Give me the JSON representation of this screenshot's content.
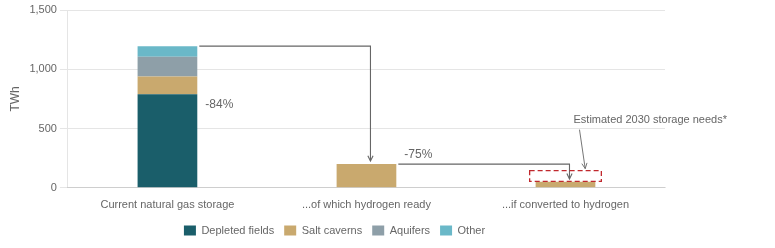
{
  "chart_data": {
    "type": "bar",
    "stacked": true,
    "categories": [
      "Current natural gas storage",
      "...of which hydrogen ready",
      "...if converted to hydrogen"
    ],
    "series": [
      {
        "name": "Depleted fields",
        "color": "#1a5e6a",
        "values": [
          790,
          0,
          0
        ]
      },
      {
        "name": "Salt caverns",
        "color": "#c9a96e",
        "values": [
          150,
          200,
          50
        ]
      },
      {
        "name": "Aquifers",
        "color": "#8e9fa8",
        "values": [
          165,
          0,
          0
        ]
      },
      {
        "name": "Other",
        "color": "#6ab8c8",
        "values": [
          90,
          0,
          0
        ]
      }
    ],
    "ylabel": "TWh",
    "ylim": [
      0,
      1500
    ],
    "yticks": [
      0,
      500,
      {
        "value": 1000,
        "label": "1,000"
      },
      {
        "value": 1500,
        "label": "1,500"
      }
    ],
    "grid": "y",
    "legend": "bottom",
    "annotations": [
      "-84%",
      "-75%"
    ],
    "estimated_storage": {
      "label": "Estimated 2030 storage needs*",
      "low": 55,
      "high": 145,
      "color": "#c0282d"
    }
  }
}
